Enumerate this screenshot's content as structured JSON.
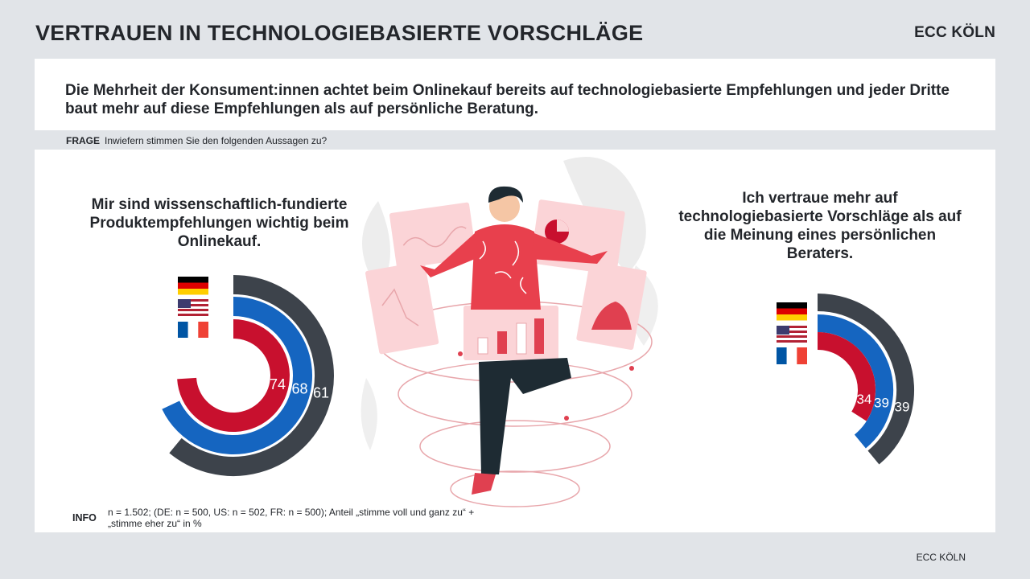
{
  "page": {
    "title": "VERTRAUEN IN TECHNOLOGIEBASIERTE VORSCHLÄGE",
    "brand": "ECC KÖLN",
    "headline": "Die Mehrheit der Konsument:innen achtet beim Onlinekauf bereits auf technologiebasierte Empfehlungen und jeder Dritte baut mehr auf diese Empfehlungen als auf persönliche Beratung.",
    "question_label": "FRAGE",
    "question_text": "Inwiefern stimmen Sie den folgenden Aussagen zu?",
    "info_label": "INFO",
    "info_text": "n = 1.502; (DE: n = 500, US: n = 502, FR: n = 500); Anteil „stimme voll und ganz zu“ + „stimme eher zu“ in %",
    "footer": "ECC KÖLN"
  },
  "colors": {
    "germany": "#3d434b",
    "usa": "#1565c0",
    "france": "#c8102e",
    "text": "#23262b"
  },
  "chart_data": [
    {
      "type": "radial-bar",
      "title": "Mir sind wissenschaftlich-fundierte Produktempfehlungen wichtig beim Onlinekauf.",
      "unit": "%",
      "series": [
        {
          "name": "DE",
          "flag": "germany-flag",
          "value": 61
        },
        {
          "name": "US",
          "flag": "usa-flag",
          "value": 68
        },
        {
          "name": "FR",
          "flag": "france-flag",
          "value": 74
        }
      ]
    },
    {
      "type": "radial-bar",
      "title": "Ich vertraue mehr auf technologiebasierte Vorschläge als auf die Meinung eines persönlichen Beraters.",
      "unit": "%",
      "series": [
        {
          "name": "DE",
          "flag": "germany-flag",
          "value": 39
        },
        {
          "name": "US",
          "flag": "usa-flag",
          "value": 39
        },
        {
          "name": "FR",
          "flag": "france-flag",
          "value": 34
        }
      ]
    }
  ]
}
